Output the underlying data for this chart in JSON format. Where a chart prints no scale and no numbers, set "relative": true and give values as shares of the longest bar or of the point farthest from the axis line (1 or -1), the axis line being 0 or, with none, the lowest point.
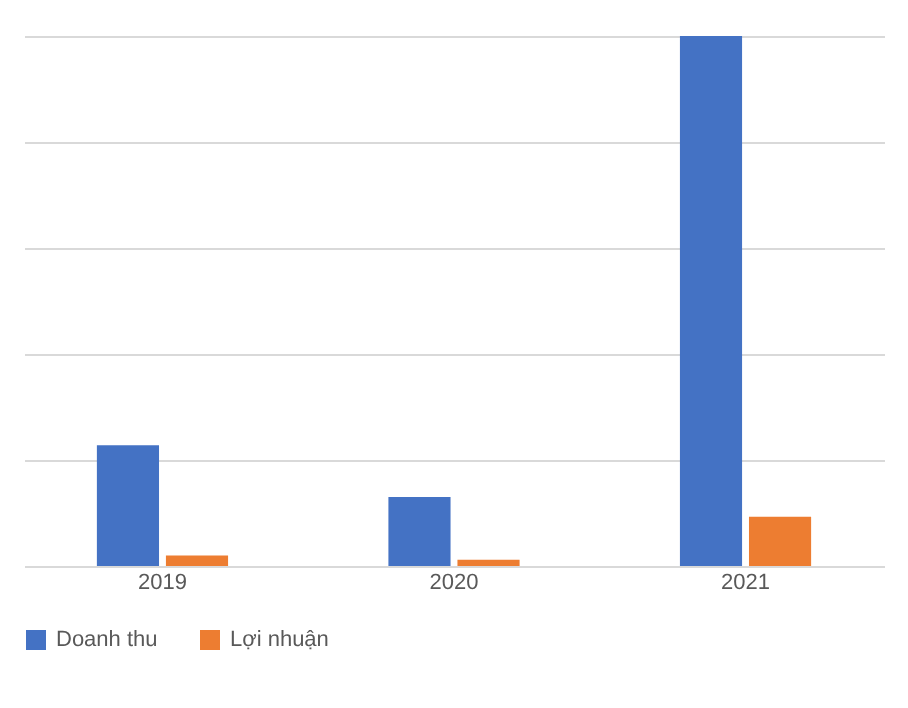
{
  "chart_data": {
    "type": "bar",
    "relative": true,
    "categories": [
      "2019",
      "2020",
      "2021"
    ],
    "series": [
      {
        "name": "Doanh thu",
        "color": "#4472c4",
        "values": [
          0.228,
          0.13,
          1
        ]
      },
      {
        "name": "Lợi nhuận",
        "color": "#ed7d31",
        "values": [
          0.02,
          0.012,
          0.093
        ]
      }
    ],
    "grid": "y",
    "legend": "bottom"
  }
}
